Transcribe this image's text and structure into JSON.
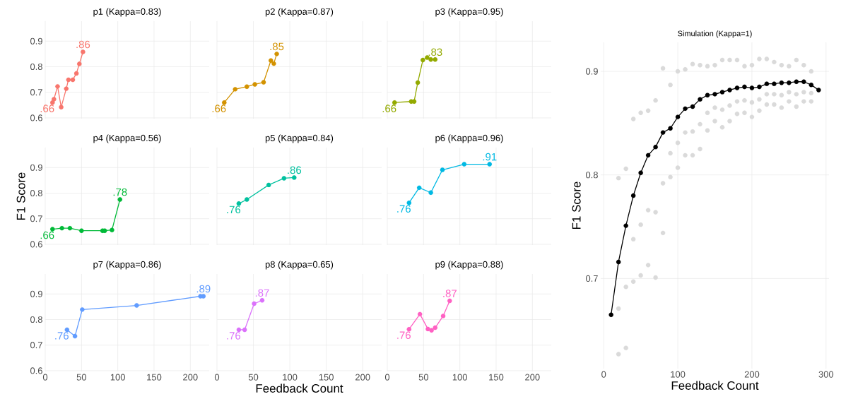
{
  "chart_data": [
    {
      "type": "line",
      "title": "p1 (Kappa=0.83)",
      "x": [
        10,
        12,
        17,
        22,
        29,
        32,
        38,
        43,
        47,
        52
      ],
      "xlim": [
        0,
        226
      ],
      "ylim": [
        0.597,
        0.978
      ],
      "xticks": [
        0,
        50,
        100,
        150,
        200
      ],
      "yticks": [
        0.6,
        0.7,
        0.8,
        0.9
      ],
      "grid": true,
      "marker": "circle",
      "tick_labels": "y",
      "series": [
        {
          "color": "#f8766d",
          "values": [
            0.66,
            0.673,
            0.723,
            0.642,
            0.714,
            0.749,
            0.749,
            0.774,
            0.811,
            0.858
          ],
          "value_labels": [
            ".66",
            null,
            null,
            null,
            null,
            null,
            null,
            null,
            null,
            ".86"
          ]
        }
      ]
    },
    {
      "type": "line",
      "title": "p2 (Kappa=0.87)",
      "x": [
        10,
        25,
        41,
        52,
        64,
        74,
        78,
        82
      ],
      "xlim": [
        0,
        226
      ],
      "ylim": [
        0.597,
        0.978
      ],
      "xticks": [
        0,
        50,
        100,
        150,
        200
      ],
      "yticks": [
        0.6,
        0.7,
        0.8,
        0.9
      ],
      "grid": true,
      "marker": "circle",
      "tick_labels": false,
      "series": [
        {
          "color": "#d39200",
          "values": [
            0.66,
            0.712,
            0.722,
            0.731,
            0.739,
            0.824,
            0.812,
            0.85
          ],
          "value_labels": [
            ".66",
            null,
            null,
            null,
            null,
            null,
            null,
            ".85"
          ]
        }
      ]
    },
    {
      "type": "line",
      "title": "p3 (Kappa=0.95)",
      "x": [
        10,
        33,
        37,
        42,
        49,
        55,
        60,
        66
      ],
      "xlim": [
        0,
        226
      ],
      "ylim": [
        0.597,
        0.978
      ],
      "xticks": [
        0,
        50,
        100,
        150,
        200
      ],
      "yticks": [
        0.6,
        0.7,
        0.8,
        0.9
      ],
      "grid": true,
      "marker": "circle",
      "tick_labels": false,
      "series": [
        {
          "color": "#93aa00",
          "values": [
            0.66,
            0.664,
            0.664,
            0.738,
            0.826,
            0.836,
            0.828,
            0.828
          ],
          "value_labels": [
            ".66",
            null,
            null,
            null,
            null,
            null,
            null,
            ".83"
          ]
        }
      ]
    },
    {
      "type": "line",
      "title": "p4 (Kappa=0.56)",
      "ylabel": "F1 Score",
      "x": [
        10,
        23,
        34,
        50,
        79,
        82,
        92,
        103
      ],
      "xlim": [
        0,
        226
      ],
      "ylim": [
        0.597,
        0.978
      ],
      "xticks": [
        0,
        50,
        100,
        150,
        200
      ],
      "yticks": [
        0.6,
        0.7,
        0.8,
        0.9
      ],
      "grid": true,
      "marker": "circle",
      "tick_labels": "y",
      "series": [
        {
          "color": "#00ba38",
          "values": [
            0.659,
            0.663,
            0.663,
            0.653,
            0.653,
            0.653,
            0.656,
            0.775
          ],
          "value_labels": [
            ".66",
            null,
            null,
            null,
            null,
            null,
            null,
            ".78"
          ]
        }
      ]
    },
    {
      "type": "line",
      "title": "p5 (Kappa=0.84)",
      "x": [
        30,
        41,
        71,
        92,
        106
      ],
      "xlim": [
        0,
        226
      ],
      "ylim": [
        0.597,
        0.978
      ],
      "xticks": [
        0,
        50,
        100,
        150,
        200
      ],
      "yticks": [
        0.6,
        0.7,
        0.8,
        0.9
      ],
      "grid": true,
      "marker": "circle",
      "tick_labels": false,
      "series": [
        {
          "color": "#00c19f",
          "values": [
            0.759,
            0.775,
            0.832,
            0.858,
            0.861
          ],
          "value_labels": [
            ".76",
            null,
            null,
            null,
            ".86"
          ]
        }
      ]
    },
    {
      "type": "line",
      "title": "p6 (Kappa=0.96)",
      "x": [
        30,
        44,
        60,
        76,
        106,
        141
      ],
      "xlim": [
        0,
        226
      ],
      "ylim": [
        0.597,
        0.978
      ],
      "xticks": [
        0,
        50,
        100,
        150,
        200
      ],
      "yticks": [
        0.6,
        0.7,
        0.8,
        0.9
      ],
      "grid": true,
      "marker": "circle",
      "tick_labels": false,
      "series": [
        {
          "color": "#00b9e3",
          "values": [
            0.762,
            0.821,
            0.802,
            0.891,
            0.913,
            0.913
          ],
          "value_labels": [
            ".76",
            null,
            null,
            null,
            null,
            ".91"
          ]
        }
      ]
    },
    {
      "type": "line",
      "title": "p7 (Kappa=0.86)",
      "x": [
        30,
        41,
        51,
        126,
        214,
        218
      ],
      "xlim": [
        0,
        226
      ],
      "ylim": [
        0.597,
        0.978
      ],
      "xticks": [
        0,
        50,
        100,
        150,
        200
      ],
      "yticks": [
        0.6,
        0.7,
        0.8,
        0.9
      ],
      "grid": true,
      "marker": "circle",
      "series": [
        {
          "color": "#619cff",
          "values": [
            0.76,
            0.735,
            0.839,
            0.855,
            0.891,
            0.891
          ],
          "value_labels": [
            ".76",
            null,
            null,
            null,
            null,
            ".89"
          ]
        }
      ]
    },
    {
      "type": "line",
      "title": "p8 (Kappa=0.65)",
      "xlabel": "Feedback Count",
      "x": [
        30,
        38,
        51,
        62
      ],
      "xlim": [
        0,
        226
      ],
      "ylim": [
        0.597,
        0.978
      ],
      "xticks": [
        0,
        50,
        100,
        150,
        200
      ],
      "yticks": [
        0.6,
        0.7,
        0.8,
        0.9
      ],
      "grid": true,
      "marker": "circle",
      "tick_labels": "x",
      "series": [
        {
          "color": "#db72fb",
          "values": [
            0.76,
            0.76,
            0.862,
            0.875
          ],
          "value_labels": [
            ".76",
            null,
            null,
            ".87"
          ]
        }
      ]
    },
    {
      "type": "line",
      "title": "p9 (Kappa=0.88)",
      "x": [
        30,
        45,
        56,
        61,
        66,
        77,
        86
      ],
      "xlim": [
        0,
        226
      ],
      "ylim": [
        0.597,
        0.978
      ],
      "xticks": [
        0,
        50,
        100,
        150,
        200
      ],
      "yticks": [
        0.6,
        0.7,
        0.8,
        0.9
      ],
      "grid": true,
      "marker": "circle",
      "tick_labels": "x",
      "series": [
        {
          "color": "#ff61c3",
          "values": [
            0.762,
            0.821,
            0.763,
            0.758,
            0.768,
            0.814,
            0.873
          ],
          "value_labels": [
            ".76",
            null,
            null,
            null,
            null,
            null,
            ".87"
          ]
        }
      ]
    },
    {
      "type": "line",
      "title": "Simulation (Kappa=1)",
      "xlabel": "Feedback Count",
      "ylabel": "F1 Score",
      "xlim": [
        -4,
        304
      ],
      "ylim": [
        0.613,
        0.928
      ],
      "xticks": [
        0,
        100,
        200,
        300
      ],
      "yticks": [
        0.7,
        0.8,
        0.9
      ],
      "grid": true,
      "marker": "circle",
      "series": [
        {
          "type": "scatter",
          "color": "#dadada",
          "x": [
            20,
            20,
            20,
            30,
            30,
            30,
            40,
            40,
            40,
            50,
            50,
            50,
            60,
            60,
            60,
            70,
            70,
            70,
            80,
            80,
            80,
            90,
            90,
            90,
            100,
            100,
            100,
            110,
            110,
            110,
            120,
            120,
            120,
            130,
            130,
            130,
            140,
            140,
            140,
            150,
            150,
            150,
            160,
            160,
            160,
            170,
            170,
            170,
            180,
            180,
            180,
            190,
            190,
            190,
            200,
            200,
            200,
            210,
            210,
            210,
            220,
            220,
            220,
            230,
            230,
            230,
            240,
            240,
            240,
            250,
            250,
            250,
            260,
            260,
            260,
            270,
            270,
            270,
            280,
            280,
            280
          ],
          "values": [
            0.627,
            0.671,
            0.797,
            0.633,
            0.692,
            0.806,
            0.697,
            0.738,
            0.854,
            0.703,
            0.752,
            0.86,
            0.713,
            0.766,
            0.862,
            0.701,
            0.764,
            0.872,
            0.744,
            0.792,
            0.903,
            0.798,
            0.821,
            0.887,
            0.807,
            0.831,
            0.9,
            0.819,
            0.841,
            0.902,
            0.819,
            0.842,
            0.907,
            0.825,
            0.849,
            0.906,
            0.843,
            0.86,
            0.905,
            0.852,
            0.865,
            0.906,
            0.846,
            0.863,
            0.911,
            0.852,
            0.867,
            0.911,
            0.859,
            0.871,
            0.911,
            0.86,
            0.872,
            0.905,
            0.856,
            0.87,
            0.906,
            0.862,
            0.873,
            0.912,
            0.868,
            0.878,
            0.912,
            0.868,
            0.878,
            0.909,
            0.865,
            0.877,
            0.906,
            0.871,
            0.88,
            0.905,
            0.866,
            0.878,
            0.911,
            0.871,
            0.88,
            0.906,
            0.871,
            0.879,
            0.9
          ]
        },
        {
          "type": "line",
          "color": "#000000",
          "x": [
            10,
            20,
            30,
            40,
            50,
            60,
            70,
            80,
            90,
            100,
            110,
            120,
            130,
            140,
            150,
            160,
            170,
            180,
            190,
            200,
            210,
            220,
            230,
            240,
            250,
            260,
            270,
            280,
            290
          ],
          "values": [
            0.665,
            0.716,
            0.751,
            0.78,
            0.802,
            0.819,
            0.827,
            0.841,
            0.845,
            0.856,
            0.864,
            0.866,
            0.873,
            0.877,
            0.878,
            0.88,
            0.882,
            0.884,
            0.885,
            0.884,
            0.885,
            0.888,
            0.888,
            0.889,
            0.889,
            0.89,
            0.89,
            0.887,
            0.882
          ]
        }
      ]
    }
  ]
}
